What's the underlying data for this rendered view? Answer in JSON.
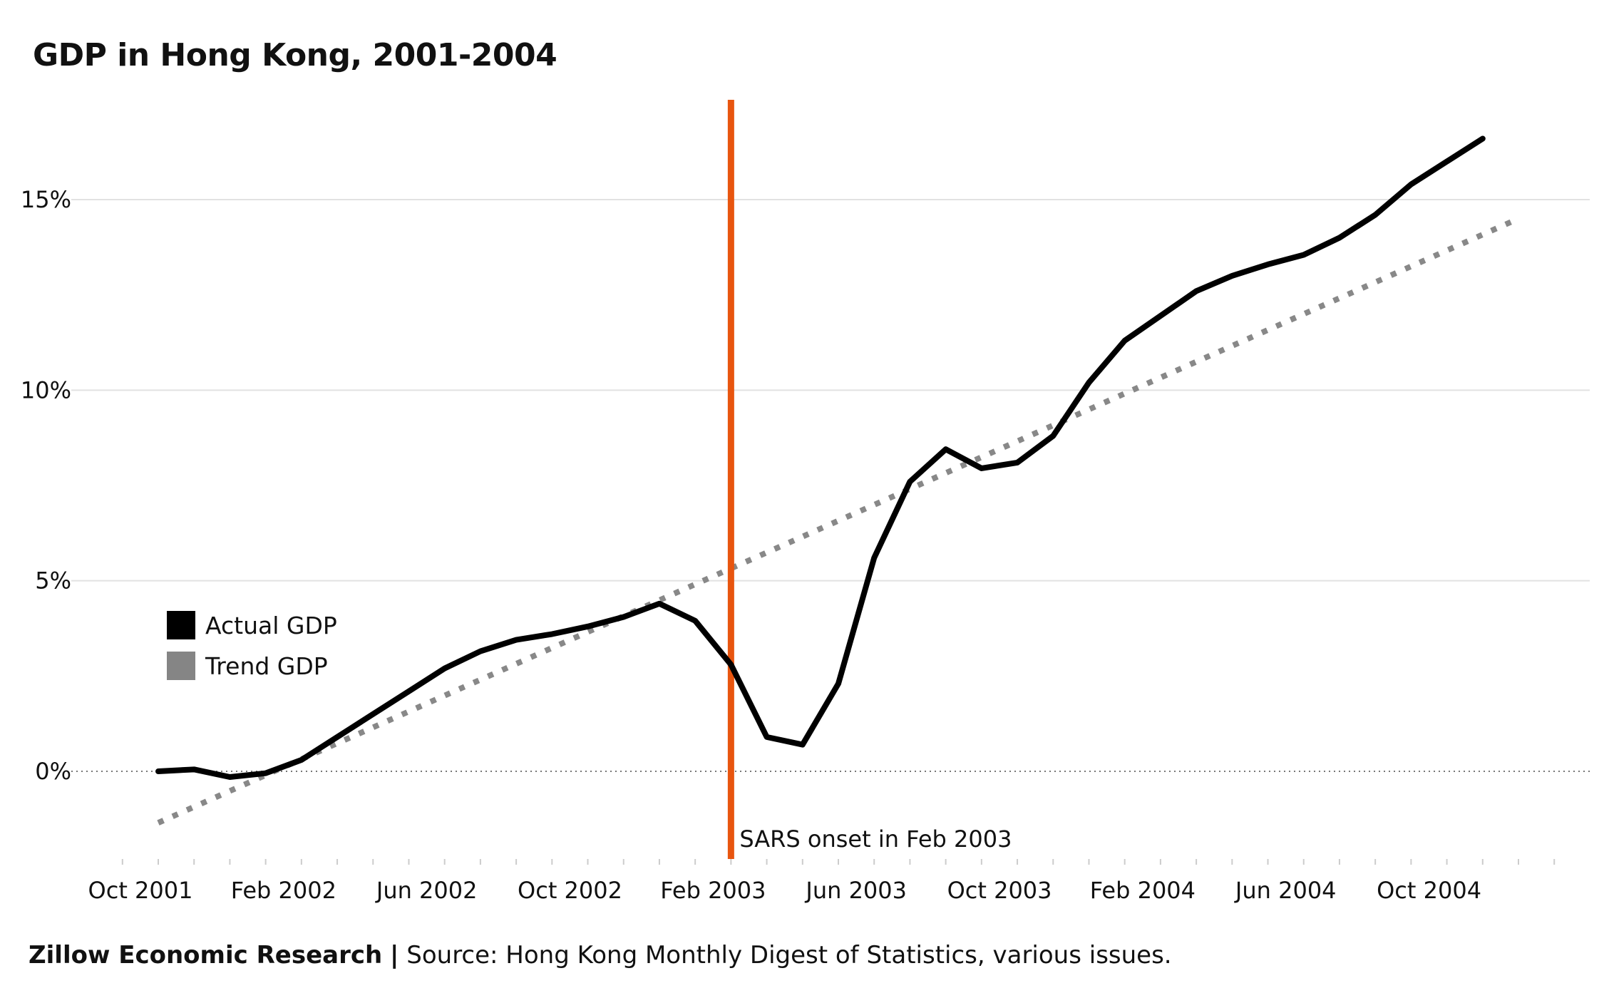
{
  "title": "GDP in Hong Kong, 2001-2004",
  "footer": {
    "org": "Zillow Economic Research",
    "separator": "|",
    "source": "Source: Hong Kong Monthly Digest of Statistics, various issues."
  },
  "chart_data": {
    "type": "line",
    "title": "GDP in Hong Kong, 2001-2004",
    "xlabel": "",
    "ylabel": "",
    "x_tick_labels": [
      "Oct 2001",
      "Feb 2002",
      "Jun 2002",
      "Oct 2002",
      "Feb 2003",
      "Jun 2003",
      "Oct 2003",
      "Feb 2004",
      "Jun 2004",
      "Oct 2004"
    ],
    "y_tick_labels": [
      "0%",
      "5%",
      "10%",
      "15%"
    ],
    "y_ticks": [
      0,
      5,
      10,
      15
    ],
    "ylim": [
      -2.3,
      17.3
    ],
    "xlim": [
      "2001-09",
      "2004-12"
    ],
    "grid": true,
    "legend_position": "left",
    "series": [
      {
        "name": "Actual GDP",
        "color": "#000000",
        "style": "solid",
        "x": [
          "2001-10",
          "2001-11",
          "2001-12",
          "2002-01",
          "2002-02",
          "2002-03",
          "2002-04",
          "2002-05",
          "2002-06",
          "2002-07",
          "2002-08",
          "2002-09",
          "2002-10",
          "2002-11",
          "2002-12",
          "2003-01",
          "2003-02",
          "2003-03",
          "2003-04",
          "2003-05",
          "2003-06",
          "2003-07",
          "2003-08",
          "2003-09",
          "2003-10",
          "2003-11",
          "2003-12",
          "2004-01",
          "2004-02",
          "2004-03",
          "2004-04",
          "2004-05",
          "2004-06",
          "2004-07",
          "2004-08",
          "2004-09",
          "2004-10",
          "2004-11",
          "2004-12"
        ],
        "values": [
          0.0,
          0.05,
          -0.15,
          -0.05,
          0.3,
          0.9,
          1.5,
          2.1,
          2.7,
          3.15,
          3.45,
          3.6,
          3.8,
          4.05,
          4.4,
          3.95,
          2.8,
          0.9,
          0.7,
          2.3,
          5.6,
          7.6,
          8.45,
          7.95,
          8.1,
          8.8,
          10.2,
          11.3,
          11.95,
          12.6,
          13.0,
          13.3,
          13.55,
          14.0,
          14.6,
          15.4,
          16.0,
          16.6,
          null
        ]
      },
      {
        "name": "Trend GDP",
        "color": "#888888",
        "style": "dotted",
        "x": [
          "2001-10",
          "2004-12"
        ],
        "values": [
          -1.35,
          14.5
        ]
      }
    ],
    "annotations": [
      {
        "x": "2003-02",
        "label": "SARS onset in Feb 2003",
        "color": "#e8550f",
        "type": "vertical-line"
      }
    ],
    "reference_lines": [
      {
        "y": 0,
        "style": "dotted",
        "color": "#777777"
      }
    ]
  }
}
